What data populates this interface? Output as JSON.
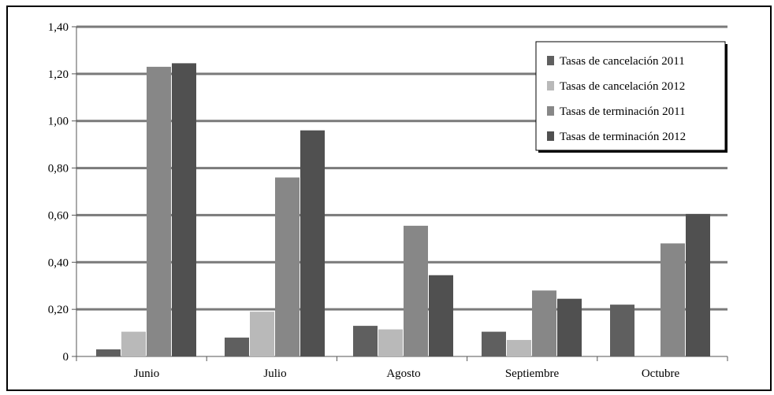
{
  "chart_data": {
    "type": "bar",
    "categories": [
      "Junio",
      "Julio",
      "Agosto",
      "Septiembre",
      "Octubre"
    ],
    "series": [
      {
        "name": "Tasas de cancelación 2011",
        "color": "#5f5f5f",
        "values": [
          0.03,
          0.08,
          0.13,
          0.105,
          0.22
        ]
      },
      {
        "name": "Tasas de cancelación 2012",
        "color": "#b9b9b9",
        "values": [
          0.105,
          0.19,
          0.115,
          0.07,
          0
        ]
      },
      {
        "name": "Tasas de terminación 2011",
        "color": "#878787",
        "values": [
          1.23,
          0.76,
          0.555,
          0.28,
          0.48
        ]
      },
      {
        "name": "Tasas de terminación 2012",
        "color": "#505050",
        "values": [
          1.245,
          0.96,
          0.345,
          0.245,
          0.605
        ]
      }
    ],
    "y_ticks": [
      {
        "value": 0,
        "label": "0"
      },
      {
        "value": 0.2,
        "label": "0,20"
      },
      {
        "value": 0.4,
        "label": "0,40"
      },
      {
        "value": 0.6,
        "label": "0,60"
      },
      {
        "value": 0.8,
        "label": "0,80"
      },
      {
        "value": 1.0,
        "label": "1,00"
      },
      {
        "value": 1.2,
        "label": "1,20"
      },
      {
        "value": 1.4,
        "label": "1,40"
      }
    ],
    "ylim": [
      0,
      1.4
    ],
    "grid": true,
    "legend_position": "top-right",
    "title": "",
    "xlabel": "",
    "ylabel": "",
    "gridline_color": "#7a7a7a"
  }
}
